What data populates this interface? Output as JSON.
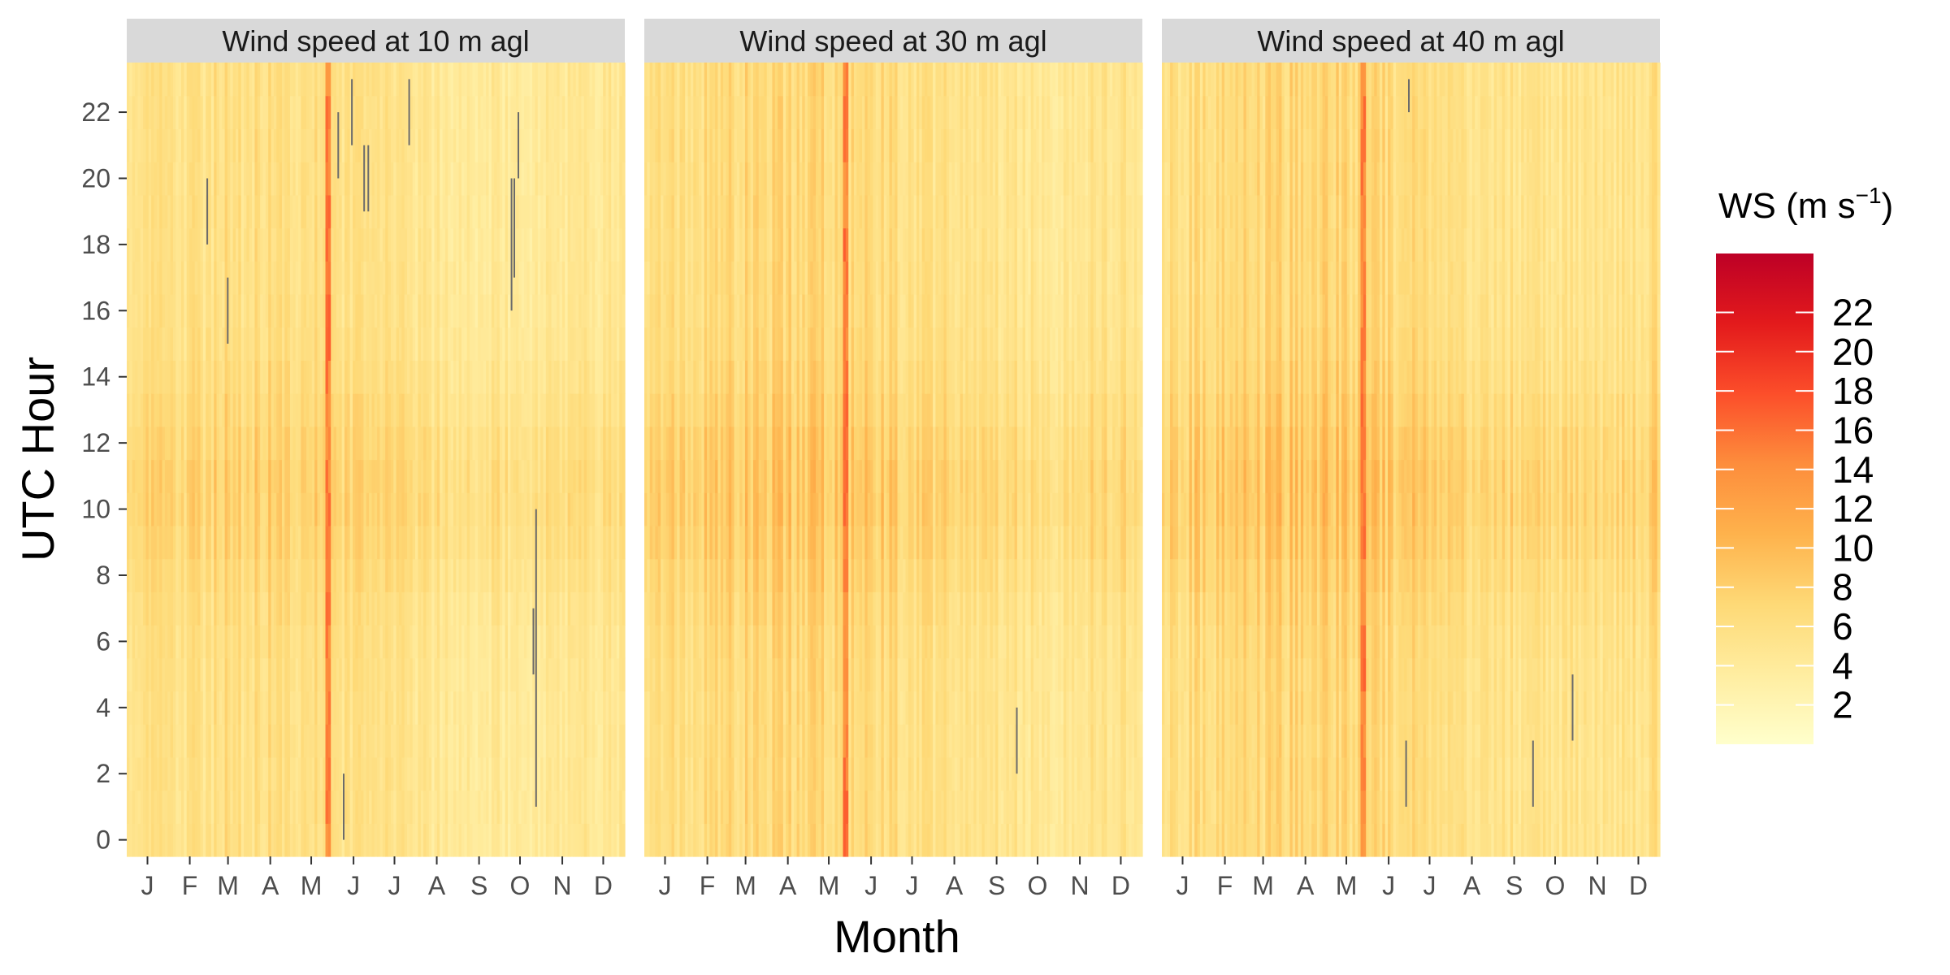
{
  "chart_data": {
    "type": "heatmap",
    "xlabel": "Month",
    "ylabel": "UTC Hour",
    "x_tick_labels": [
      "J",
      "F",
      "M",
      "A",
      "M",
      "J",
      "J",
      "A",
      "S",
      "O",
      "N",
      "D"
    ],
    "y_range": [
      0,
      23
    ],
    "y_ticks": [
      0,
      2,
      4,
      6,
      8,
      10,
      12,
      14,
      16,
      18,
      20,
      22
    ],
    "x_range_days": [
      1,
      366
    ],
    "grid": false,
    "legend": {
      "title_main": "WS (m s",
      "title_sup": "−1",
      "title_end": ")",
      "placement": "right",
      "range": [
        0,
        25
      ],
      "ticks": [
        2,
        4,
        6,
        8,
        10,
        12,
        14,
        16,
        18,
        20,
        22
      ],
      "colors": [
        "#ffffcc",
        "#ffeda0",
        "#fed976",
        "#feb24c",
        "#fd8d3c",
        "#fc4e2a",
        "#e31a1c",
        "#bd0026"
      ]
    },
    "panels": [
      {
        "title": "Wind speed at 10 m agl",
        "base_ws": 5.0,
        "diurnal_amplitude": 1.8,
        "seasonal_peak_month": 4,
        "high_wind_event_day": 148,
        "missing_segments": [
          {
            "day": 156,
            "hours": [
              20,
              22
            ]
          },
          {
            "day": 160,
            "hours": [
              0,
              2
            ]
          },
          {
            "day": 166,
            "hours": [
              21,
              23
            ]
          },
          {
            "day": 175,
            "hours": [
              19,
              21
            ]
          },
          {
            "day": 178,
            "hours": [
              19,
              21
            ]
          },
          {
            "day": 208,
            "hours": [
              21,
              23
            ]
          },
          {
            "day": 60,
            "hours": [
              18,
              20
            ]
          },
          {
            "day": 75,
            "hours": [
              15,
              17
            ]
          },
          {
            "day": 283,
            "hours": [
              16,
              20
            ]
          },
          {
            "day": 285,
            "hours": [
              17,
              20
            ]
          },
          {
            "day": 288,
            "hours": [
              20,
              22
            ]
          },
          {
            "day": 299,
            "hours": [
              5,
              7
            ]
          },
          {
            "day": 301,
            "hours": [
              1,
              10
            ]
          }
        ]
      },
      {
        "title": "Wind speed at 30 m agl",
        "base_ws": 5.8,
        "diurnal_amplitude": 1.9,
        "seasonal_peak_month": 4,
        "high_wind_event_day": 148,
        "missing_segments": [
          {
            "day": 274,
            "hours": [
              2,
              4
            ]
          }
        ]
      },
      {
        "title": "Wind speed at 40 m agl",
        "base_ws": 6.0,
        "diurnal_amplitude": 2.0,
        "seasonal_peak_month": 4,
        "high_wind_event_day": 148,
        "missing_segments": [
          {
            "day": 182,
            "hours": [
              22,
              23
            ]
          },
          {
            "day": 180,
            "hours": [
              1,
              3
            ]
          },
          {
            "day": 273,
            "hours": [
              1,
              3
            ]
          },
          {
            "day": 302,
            "hours": [
              3,
              5
            ]
          }
        ]
      }
    ]
  }
}
